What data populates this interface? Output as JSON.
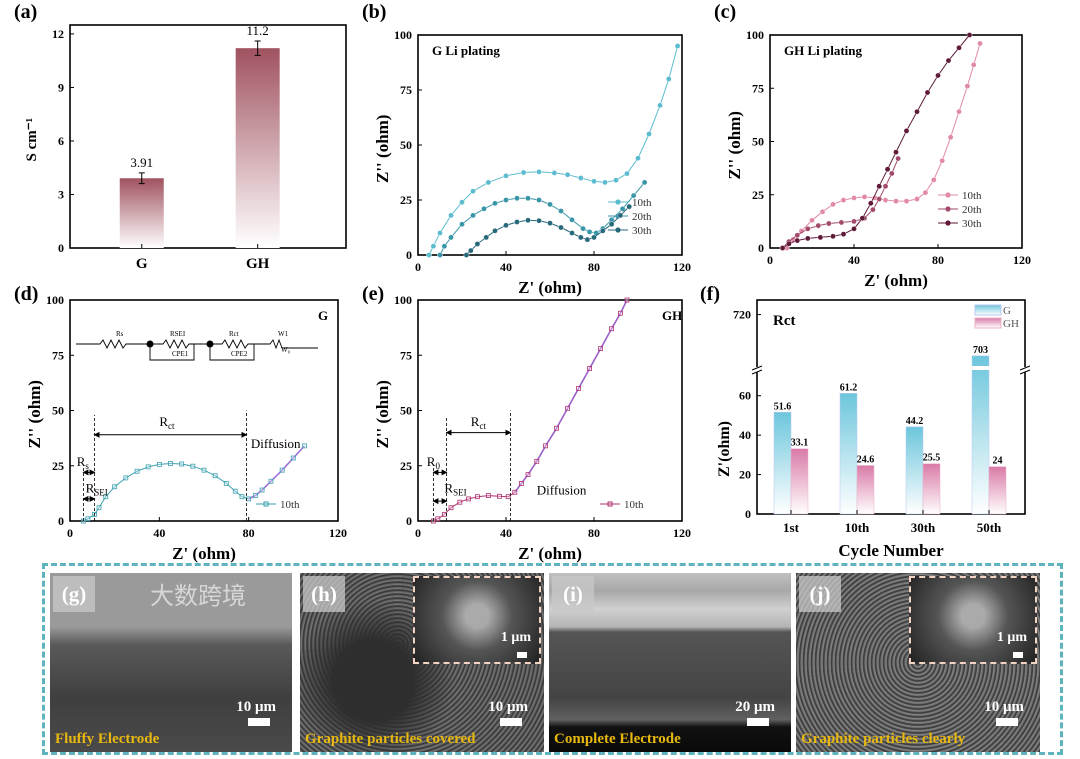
{
  "chart_data": [
    {
      "id": "a",
      "panel_label": "(a)",
      "type": "bar",
      "categories": [
        "G",
        "GH"
      ],
      "values": [
        3.91,
        11.2
      ],
      "errors": [
        0.3,
        0.4
      ],
      "data_labels": [
        "3.91",
        "11.2"
      ],
      "ylabel": "S cm⁻¹",
      "ylim": [
        0,
        12.5
      ],
      "yticks": [
        0,
        3,
        6,
        9,
        12
      ],
      "bar_color": "#a0525f"
    },
    {
      "id": "b",
      "panel_label": "(b)",
      "type": "line",
      "title": "G Li plating",
      "xlabel": "Z' (ohm)",
      "ylabel": "Z'' (ohm)",
      "xlim": [
        0,
        120
      ],
      "ylim": [
        0,
        100
      ],
      "xticks": [
        0,
        40,
        80,
        120
      ],
      "yticks": [
        0,
        25,
        50,
        75,
        100
      ],
      "legend": "bottom-right",
      "series": [
        {
          "name": "10th",
          "color": "#5bbccf",
          "points": [
            [
              5,
              0
            ],
            [
              7,
              4
            ],
            [
              10,
              10
            ],
            [
              15,
              18
            ],
            [
              20,
              24
            ],
            [
              25,
              29
            ],
            [
              32,
              33
            ],
            [
              40,
              36
            ],
            [
              48,
              37.5
            ],
            [
              55,
              37.8
            ],
            [
              62,
              37.3
            ],
            [
              68,
              36.5
            ],
            [
              74,
              35
            ],
            [
              80,
              33.5
            ],
            [
              85,
              33
            ],
            [
              90,
              34
            ],
            [
              95,
              37
            ],
            [
              100,
              44
            ],
            [
              105,
              55
            ],
            [
              110,
              68
            ],
            [
              114,
              80
            ],
            [
              118,
              95
            ]
          ]
        },
        {
          "name": "20th",
          "color": "#3896a8",
          "points": [
            [
              10,
              0
            ],
            [
              12,
              4
            ],
            [
              15,
              8
            ],
            [
              20,
              14
            ],
            [
              25,
              18
            ],
            [
              30,
              21
            ],
            [
              35,
              23.5
            ],
            [
              40,
              25
            ],
            [
              45,
              25.8
            ],
            [
              50,
              25.8
            ],
            [
              55,
              25
            ],
            [
              60,
              23
            ],
            [
              65,
              20
            ],
            [
              70,
              16
            ],
            [
              75,
              12
            ],
            [
              78,
              10.5
            ],
            [
              81,
              10
            ],
            [
              84,
              12
            ],
            [
              88,
              16
            ],
            [
              93,
              21
            ],
            [
              98,
              27
            ],
            [
              103,
              33
            ]
          ]
        },
        {
          "name": "30th",
          "color": "#27687a",
          "points": [
            [
              22,
              0
            ],
            [
              24,
              2
            ],
            [
              27,
              5
            ],
            [
              31,
              8
            ],
            [
              35,
              11
            ],
            [
              40,
              13.5
            ],
            [
              45,
              15
            ],
            [
              50,
              15.8
            ],
            [
              55,
              15.6
            ],
            [
              60,
              14.5
            ],
            [
              65,
              12.5
            ],
            [
              70,
              10
            ],
            [
              74,
              8
            ],
            [
              77,
              7
            ],
            [
              80,
              8
            ],
            [
              84,
              11
            ],
            [
              88,
              14
            ],
            [
              92,
              18
            ],
            [
              96,
              22
            ]
          ]
        }
      ]
    },
    {
      "id": "c",
      "panel_label": "(c)",
      "type": "line",
      "title": "GH Li plating",
      "xlabel": "Z' (ohm)",
      "ylabel": "Z'' (ohm)",
      "xlim": [
        0,
        120
      ],
      "ylim": [
        0,
        100
      ],
      "xticks": [
        0,
        40,
        80,
        120
      ],
      "yticks": [
        0,
        25,
        50,
        75,
        100
      ],
      "legend": "bottom-right",
      "series": [
        {
          "name": "10th",
          "color": "#e08aa6",
          "points": [
            [
              8,
              0
            ],
            [
              11,
              4
            ],
            [
              15,
              8
            ],
            [
              20,
              13
            ],
            [
              25,
              17
            ],
            [
              30,
              20.5
            ],
            [
              35,
              22.5
            ],
            [
              40,
              23.5
            ],
            [
              45,
              24
            ],
            [
              50,
              23.5
            ],
            [
              55,
              22.5
            ],
            [
              60,
              22
            ],
            [
              65,
              22
            ],
            [
              70,
              23
            ],
            [
              74,
              26
            ],
            [
              78,
              32
            ],
            [
              82,
              41
            ],
            [
              86,
              52
            ],
            [
              90,
              64
            ],
            [
              94,
              76
            ],
            [
              97,
              86
            ],
            [
              100,
              96
            ]
          ]
        },
        {
          "name": "20th",
          "color": "#a24a6c",
          "points": [
            [
              6,
              0
            ],
            [
              9,
              3
            ],
            [
              13,
              6
            ],
            [
              18,
              9
            ],
            [
              23,
              10.5
            ],
            [
              28,
              11.5
            ],
            [
              34,
              12
            ],
            [
              40,
              12.5
            ],
            [
              45,
              14
            ],
            [
              49,
              18
            ],
            [
              52,
              23
            ],
            [
              55,
              29
            ],
            [
              58,
              35
            ],
            [
              61,
              42
            ]
          ]
        },
        {
          "name": "30th",
          "color": "#5e1a38",
          "points": [
            [
              6,
              0
            ],
            [
              9,
              2
            ],
            [
              13,
              3.5
            ],
            [
              18,
              4.5
            ],
            [
              24,
              5
            ],
            [
              30,
              5.5
            ],
            [
              35,
              6.5
            ],
            [
              40,
              9
            ],
            [
              44,
              14
            ],
            [
              48,
              21
            ],
            [
              52,
              29
            ],
            [
              56,
              37
            ],
            [
              60,
              45
            ],
            [
              65,
              55
            ],
            [
              70,
              64
            ],
            [
              75,
              73
            ],
            [
              80,
              81
            ],
            [
              85,
              88
            ],
            [
              90,
              94
            ],
            [
              95,
              100
            ]
          ]
        }
      ]
    },
    {
      "id": "d",
      "panel_label": "(d)",
      "type": "line",
      "title": "G",
      "xlabel": "Z' (ohm)",
      "ylabel": "Z'' (ohm)",
      "xlim": [
        0,
        120
      ],
      "ylim": [
        0,
        100
      ],
      "xticks": [
        0,
        40,
        80,
        120
      ],
      "yticks": [
        0,
        25,
        50,
        75,
        100
      ],
      "legend": "bottom-right",
      "series": [
        {
          "name": "10th",
          "color": "#3aa0b0",
          "fit_color": "#a070d8",
          "points": [
            [
              6,
              0
            ],
            [
              8,
              1
            ],
            [
              11,
              3
            ],
            [
              13,
              6
            ],
            [
              16,
              11
            ],
            [
              20,
              15.5
            ],
            [
              25,
              19.5
            ],
            [
              30,
              22.5
            ],
            [
              35,
              24.5
            ],
            [
              40,
              25.6
            ],
            [
              45,
              26
            ],
            [
              50,
              25.8
            ],
            [
              55,
              24.8
            ],
            [
              60,
              23
            ],
            [
              65,
              20.5
            ],
            [
              70,
              17
            ],
            [
              74,
              13.5
            ],
            [
              77,
              11
            ],
            [
              80,
              10
            ],
            [
              83,
              11.5
            ],
            [
              86,
              14
            ],
            [
              90,
              18
            ],
            [
              95,
              23
            ],
            [
              100,
              28.5
            ],
            [
              105,
              34
            ]
          ]
        }
      ],
      "circuit": {
        "elements": [
          "Rs",
          "RSEI",
          "CPE1",
          "Rct",
          "CPE2",
          "W1",
          "W₀"
        ]
      },
      "annotations": {
        "rs": {
          "main": "R",
          "sub": "s"
        },
        "rsei": {
          "main": "R",
          "sub": "SEI"
        },
        "rct": {
          "main": "R",
          "sub": "ct"
        },
        "diffusion": "Diffusion"
      }
    },
    {
      "id": "e",
      "panel_label": "(e)",
      "type": "line",
      "title": "GH",
      "xlabel": "Z' (ohm)",
      "ylabel": "Z'' (ohm)",
      "xlim": [
        0,
        120
      ],
      "ylim": [
        0,
        100
      ],
      "xticks": [
        0,
        40,
        80,
        120
      ],
      "yticks": [
        0,
        25,
        50,
        75,
        100
      ],
      "legend": "bottom-right",
      "series": [
        {
          "name": "10th",
          "color": "#b03070",
          "fit_color": "#9a60c8",
          "points": [
            [
              7,
              0
            ],
            [
              9,
              1
            ],
            [
              12,
              3
            ],
            [
              15,
              6
            ],
            [
              19,
              8.5
            ],
            [
              23,
              10
            ],
            [
              27,
              11
            ],
            [
              32,
              11.5
            ],
            [
              37,
              11.2
            ],
            [
              41,
              11
            ],
            [
              44,
              13
            ],
            [
              47,
              17
            ],
            [
              50,
              21
            ],
            [
              54,
              27
            ],
            [
              58,
              34
            ],
            [
              63,
              42
            ],
            [
              68,
              51
            ],
            [
              73,
              60
            ],
            [
              78,
              69
            ],
            [
              83,
              78
            ],
            [
              88,
              87
            ],
            [
              92,
              94
            ],
            [
              95,
              100
            ]
          ]
        }
      ],
      "annotations": {
        "r0": {
          "main": "R",
          "sub": "0"
        },
        "rsei": {
          "main": "R",
          "sub": "SEI"
        },
        "rct": {
          "main": "R",
          "sub": "ct"
        },
        "diffusion": "Diffusion"
      }
    },
    {
      "id": "f",
      "panel_label": "(f)",
      "type": "bar",
      "title": "Rct",
      "categories": [
        "1st",
        "10th",
        "30th",
        "50th"
      ],
      "series": [
        {
          "name": "G",
          "color": "#6cc6dc",
          "values": [
            51.6,
            61.2,
            44.2,
            703
          ],
          "labels": [
            "51.6",
            "61.2",
            "44.2",
            "703"
          ]
        },
        {
          "name": "GH",
          "color": "#d97aa6",
          "values": [
            33.1,
            24.6,
            25.5,
            24
          ],
          "labels": [
            "33.1",
            "24.6",
            "25.5",
            "24"
          ]
        }
      ],
      "xlabel": "Cycle Number",
      "ylabel": "Z'(ohm)",
      "ylim_lower": [
        0,
        70
      ],
      "ylim_upper": [
        698,
        726
      ],
      "yticks_lower": [
        0,
        20,
        40,
        60
      ],
      "yticks_upper": [
        720
      ],
      "axis_break": true,
      "legend": "top-right"
    }
  ],
  "images": [
    {
      "label": "(g)",
      "caption": "Fluffy Electrode",
      "scale": "10 μm"
    },
    {
      "label": "(h)",
      "caption": "Graphite particles covered",
      "scale": "10 μm",
      "inset_scale": "1 μm"
    },
    {
      "label": "(i)",
      "caption": "Complete Electrode",
      "scale": "20 μm"
    },
    {
      "label": "(j)",
      "caption": "Graphite particles clearly",
      "scale": "10 μm",
      "inset_scale": "1 μm"
    }
  ],
  "watermark": "大数跨境"
}
